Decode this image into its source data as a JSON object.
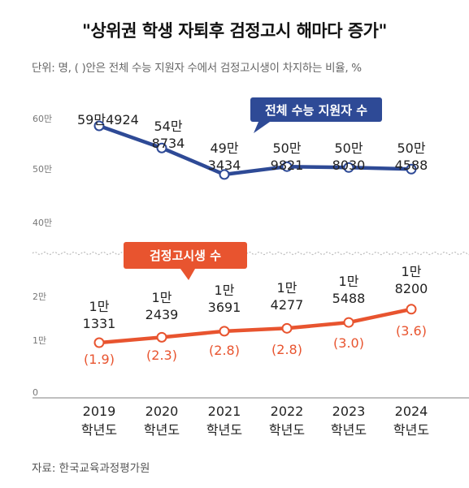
{
  "title": "\"상위권 학생 자퇴후 검정고시 해마다 증가\"",
  "subtitle": "단위: 명, ( )안은 전체 수능 지원자 수에서 검정고시생이 차지하는 비율, %",
  "source": "자료: 한국교육과정평가원",
  "colors": {
    "upper_line": "#2e4a96",
    "lower_line": "#e8542f"
  },
  "chart_data": [
    {
      "type": "line",
      "series": [
        {
          "name": "전체 수능 지원자 수",
          "values": [
            594924,
            548734,
            493434,
            509821,
            508030,
            504588
          ]
        }
      ],
      "x": [
        "2019 학년도",
        "2020 학년도",
        "2021 학년도",
        "2022 학년도",
        "2023 학년도",
        "2024 학년도"
      ],
      "value_labels": [
        [
          "59만4924"
        ],
        [
          "54만",
          "8734"
        ],
        [
          "49만",
          "3434"
        ],
        [
          "50만",
          "9821"
        ],
        [
          "50만",
          "8030"
        ],
        [
          "50만",
          "4588"
        ]
      ],
      "yticks": [
        "60만",
        "50만",
        "40만"
      ],
      "ylim": [
        400000,
        600000
      ],
      "axis_break": true
    },
    {
      "type": "line",
      "series": [
        {
          "name": "검정고시생 수",
          "values": [
            11331,
            12439,
            13691,
            14277,
            15488,
            18200
          ]
        }
      ],
      "percent": [
        "(1.9)",
        "(2.3)",
        "(2.8)",
        "(2.8)",
        "(3.0)",
        "(3.6)"
      ],
      "value_labels": [
        [
          "1만",
          "1331"
        ],
        [
          "1만",
          "2439"
        ],
        [
          "1만",
          "3691"
        ],
        [
          "1만",
          "4277"
        ],
        [
          "1만",
          "5488"
        ],
        [
          "1만",
          "8200"
        ]
      ],
      "yticks": [
        "2만",
        "1만",
        "0"
      ],
      "ylim": [
        0,
        20000
      ],
      "grid": false
    }
  ]
}
